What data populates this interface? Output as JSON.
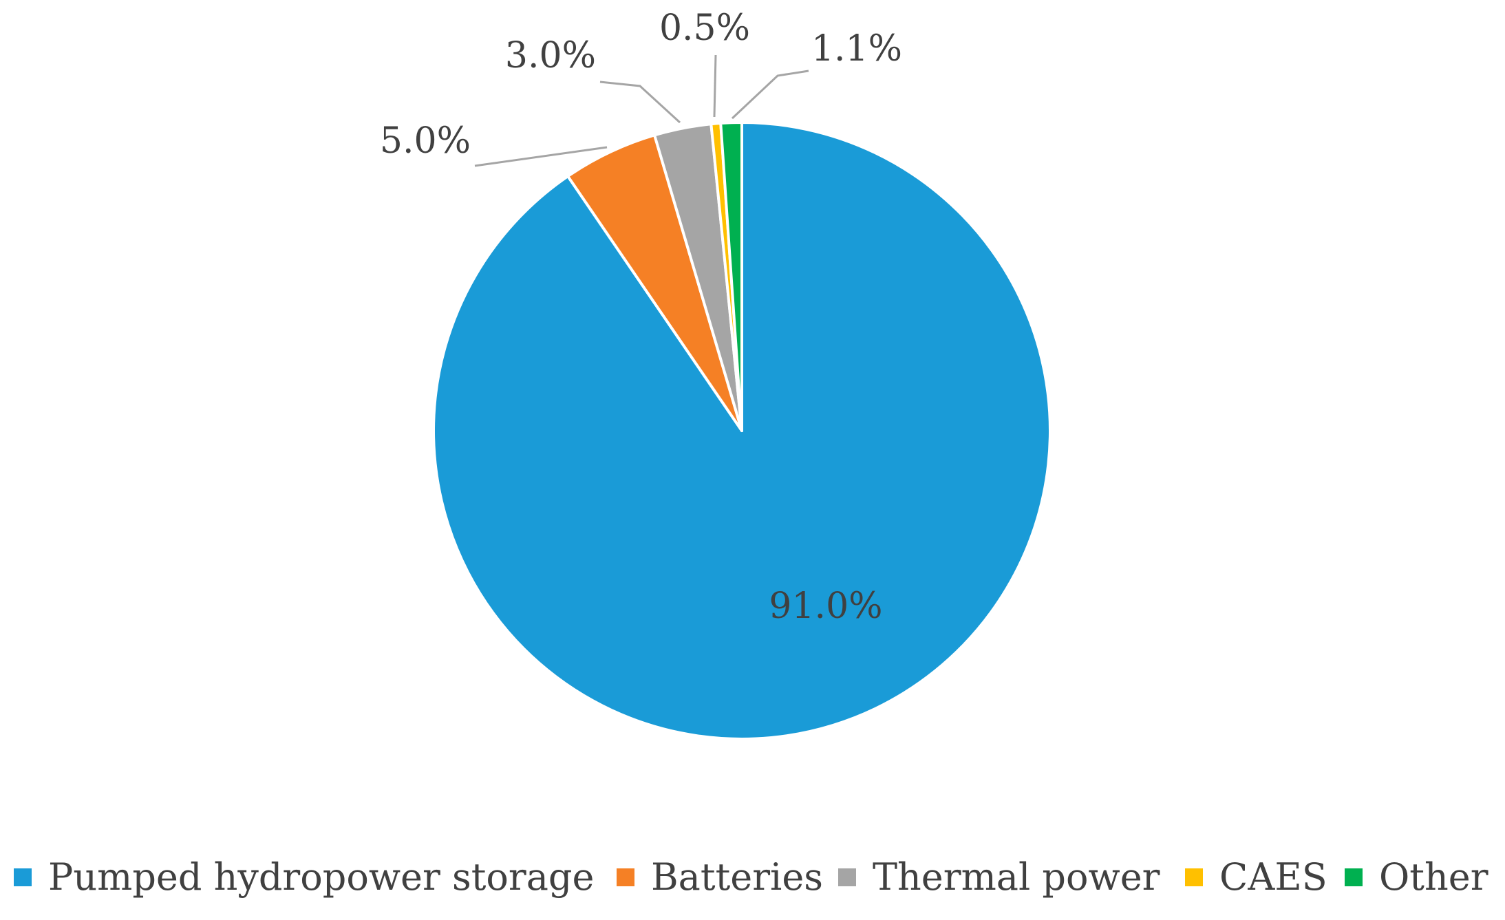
{
  "chart_data": {
    "type": "pie",
    "title": "",
    "slices": [
      {
        "label": "Pumped hydropower storage",
        "value": 91.0,
        "value_label": "91.0%",
        "color": "#1A9BD7"
      },
      {
        "label": "Batteries",
        "value": 5.0,
        "value_label": "5.0%",
        "color": "#F58025"
      },
      {
        "label": "Thermal power",
        "value": 3.0,
        "value_label": "3.0%",
        "color": "#A5A5A5"
      },
      {
        "label": "CAES",
        "value": 0.5,
        "value_label": "0.5%",
        "color": "#FFC000"
      },
      {
        "label": "Other",
        "value": 1.1,
        "value_label": "1.1%",
        "color": "#00B050"
      }
    ],
    "start_angle": "12 o'clock",
    "direction": "clockwise",
    "legend_position": "bottom"
  },
  "colors": {
    "leader_line": "#A5A5A5",
    "label_text": "#404040",
    "slice_border": "#ffffff"
  }
}
